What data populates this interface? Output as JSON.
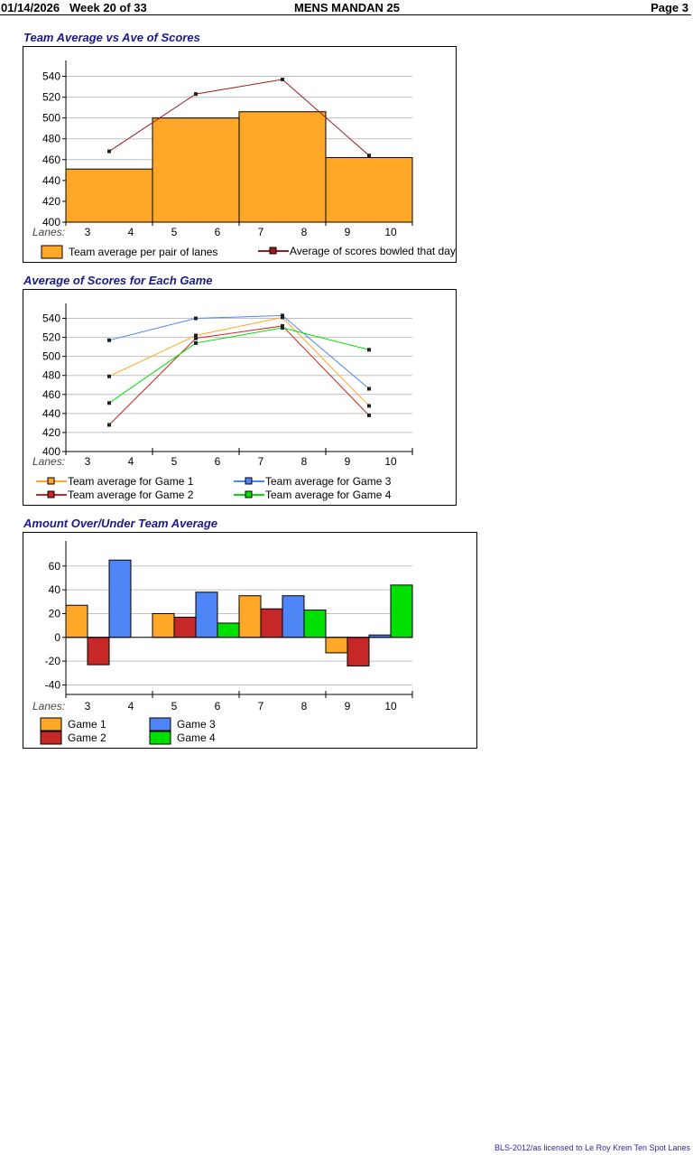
{
  "header": {
    "date": "01/14/2026",
    "week": "Week 20 of 33",
    "league": "MENS MANDAN 25",
    "page": "Page 3"
  },
  "footer": {
    "license": "BLS-2012/as licensed to Le Roy Krein  Ten Spot Lanes"
  },
  "chart_data": [
    {
      "type": "bar",
      "title": "Team Average vs Ave of Scores",
      "xlabel": "Lanes:",
      "categories": [
        "3 4",
        "5 6",
        "7 8",
        "9 10"
      ],
      "lane_labels": [
        "3",
        "4",
        "5",
        "6",
        "7",
        "8",
        "9",
        "10"
      ],
      "ylim": [
        400,
        550
      ],
      "yticks": [
        400,
        420,
        440,
        460,
        480,
        500,
        520,
        540
      ],
      "grid": true,
      "legend_position": "bottom",
      "series": [
        {
          "name": "Team average per pair of lanes",
          "kind": "bar",
          "color": "#ffa726",
          "values": [
            451,
            500,
            506,
            462
          ]
        },
        {
          "name": "Average of scores bowled that day",
          "kind": "line",
          "color": "#a01818",
          "values": [
            468,
            523,
            537,
            464
          ]
        }
      ]
    },
    {
      "type": "line",
      "title": "Average of Scores for Each Game",
      "xlabel": "Lanes:",
      "categories": [
        "3 4",
        "5 6",
        "7 8",
        "9 10"
      ],
      "lane_labels": [
        "3",
        "4",
        "5",
        "6",
        "7",
        "8",
        "9",
        "10"
      ],
      "ylim": [
        400,
        550
      ],
      "yticks": [
        400,
        420,
        440,
        460,
        480,
        500,
        520,
        540
      ],
      "grid": true,
      "legend_position": "bottom",
      "series": [
        {
          "name": "Team average for Game 1",
          "color": "#ffa726",
          "values": [
            479,
            522,
            541,
            448
          ]
        },
        {
          "name": "Team average for Game 2",
          "color": "#c62828",
          "values": [
            428,
            519,
            532,
            438
          ]
        },
        {
          "name": "Team average for Game 3",
          "color": "#4f86f7",
          "values": [
            517,
            540,
            543,
            466
          ]
        },
        {
          "name": "Team average for Game 4",
          "color": "#00e000",
          "values": [
            451,
            514,
            530,
            507
          ]
        }
      ]
    },
    {
      "type": "bar",
      "title": "Amount Over/Under Team Average",
      "xlabel": "Lanes:",
      "categories": [
        "3 4",
        "5 6",
        "7 8",
        "9 10"
      ],
      "lane_labels": [
        "3",
        "4",
        "5",
        "6",
        "7",
        "8",
        "9",
        "10"
      ],
      "ylim": [
        -48,
        72
      ],
      "yticks": [
        -40,
        -20,
        0,
        20,
        40,
        60
      ],
      "grid": true,
      "legend_position": "bottom",
      "series": [
        {
          "name": "Game 1",
          "color": "#ffa726",
          "values": [
            27,
            20,
            35,
            -13
          ]
        },
        {
          "name": "Game 2",
          "color": "#c62828",
          "values": [
            -23,
            17,
            24,
            -24
          ]
        },
        {
          "name": "Game 3",
          "color": "#4f86f7",
          "values": [
            65,
            38,
            35,
            2
          ]
        },
        {
          "name": "Game 4",
          "color": "#00e000",
          "values": [
            0,
            12,
            23,
            44
          ]
        }
      ]
    }
  ]
}
